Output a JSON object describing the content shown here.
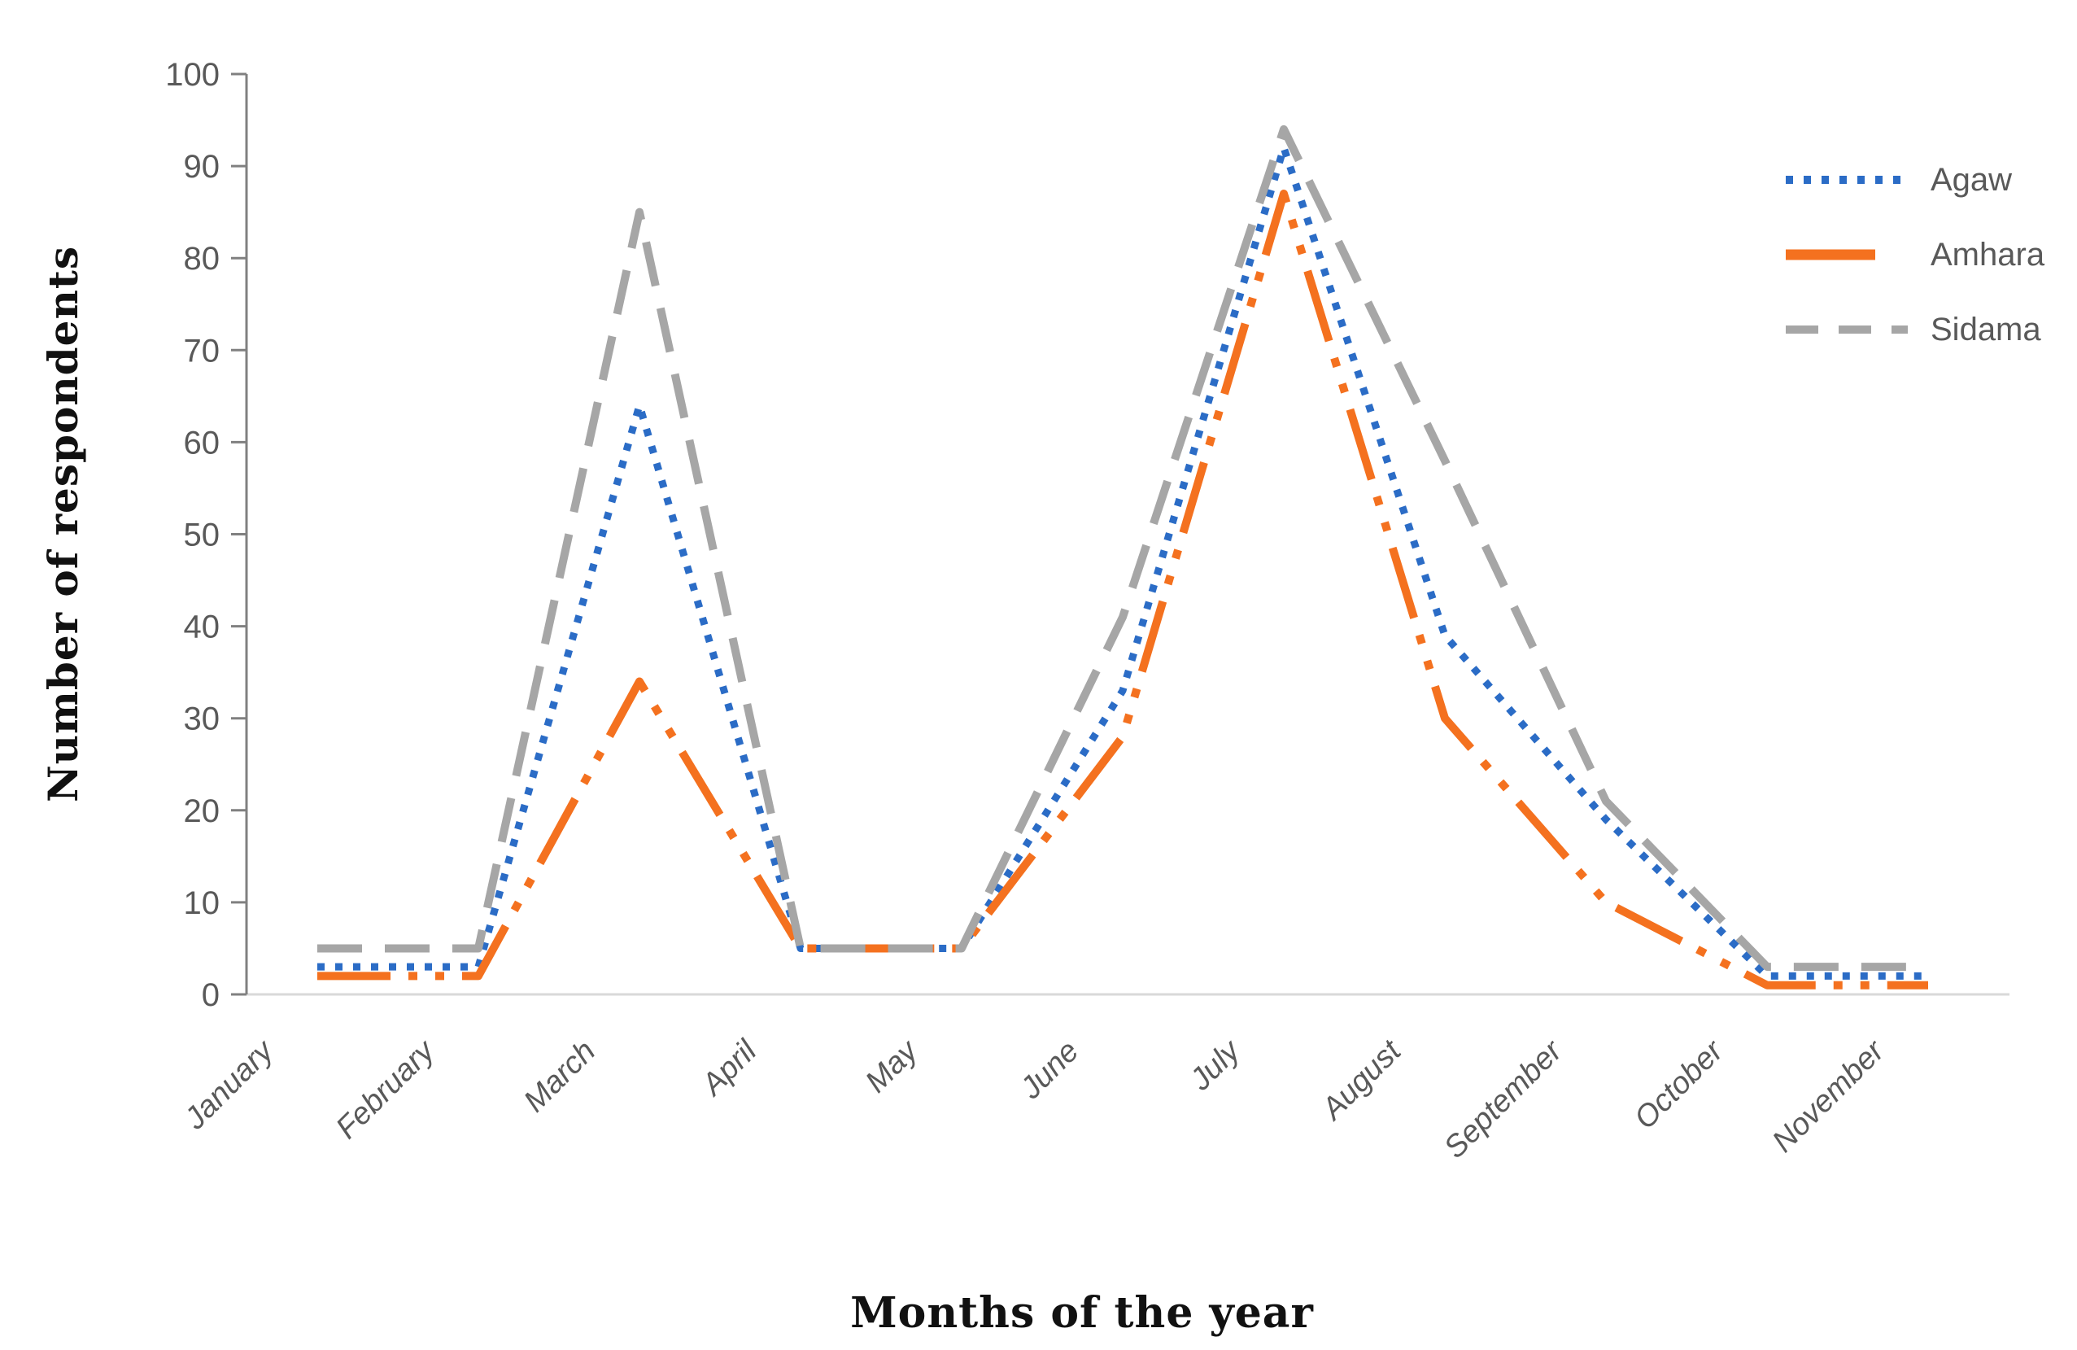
{
  "chart_data": {
    "type": "line",
    "title": "",
    "xlabel": "Months of the year",
    "ylabel": "Number of respondents",
    "categories": [
      "January",
      "February",
      "March",
      "April",
      "May",
      "June",
      "July",
      "August",
      "September",
      "October",
      "November"
    ],
    "series": [
      {
        "name": "Agaw",
        "color": "#2B6CC6",
        "dash_style": "dot",
        "values": [
          3,
          3,
          64,
          5,
          5,
          33,
          92,
          39,
          19,
          2,
          2
        ]
      },
      {
        "name": "Amhara",
        "color": "#F4711F",
        "dash_style": "dash-dot-dot",
        "values": [
          2,
          2,
          34,
          5,
          5,
          28,
          87,
          30,
          10,
          1,
          1
        ]
      },
      {
        "name": "Sidama",
        "color": "#A6A6A6",
        "dash_style": "dash",
        "values": [
          5,
          5,
          85,
          5,
          5,
          41,
          94,
          58,
          21,
          3,
          3
        ]
      }
    ],
    "ylim": [
      0,
      100
    ],
    "ytick_step": 10,
    "ytick_labels": [
      "0",
      "10",
      "20",
      "30",
      "40",
      "50",
      "60",
      "70",
      "80",
      "90",
      "100"
    ],
    "grid": false,
    "legend_position": "right",
    "axis_colors": {
      "y_axis_line": "#808080",
      "y_tick_marks": "#808080",
      "x_axis_line": "#D9D9D9",
      "tick_label_color": "#595959",
      "category_label_color": "#595959",
      "title_color": "#111111"
    }
  }
}
